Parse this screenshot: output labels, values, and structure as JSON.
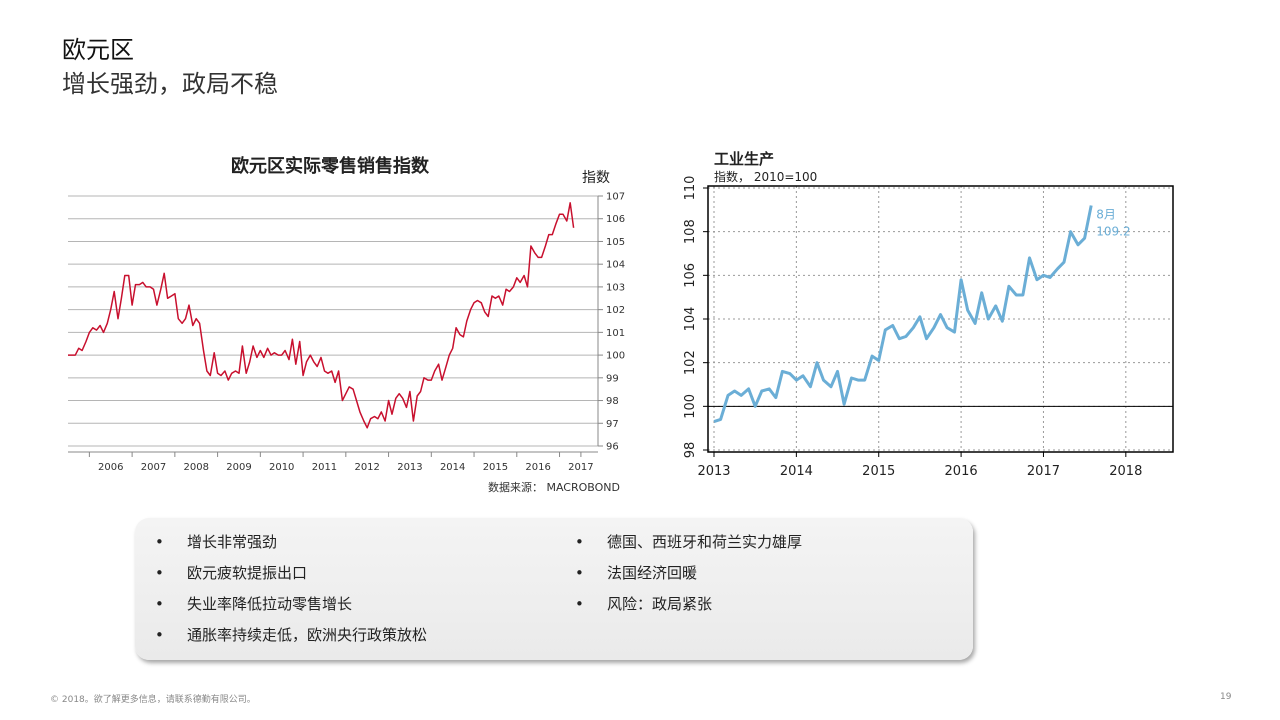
{
  "header": {
    "title": "欧元区",
    "subtitle": "增长强劲，政局不稳"
  },
  "chart_data": [
    {
      "type": "line",
      "title": "欧元区实际零售销售指数",
      "ylabel": "指数",
      "source": "数据来源： MACROBOND",
      "color": "#c8102e",
      "ylim": [
        96,
        107
      ],
      "yticks": [
        "96",
        "97",
        "98",
        "99",
        "100",
        "101",
        "102",
        "103",
        "104",
        "105",
        "106",
        "107"
      ],
      "xlim": [
        2005.5,
        2017.9
      ],
      "xticks": [
        "2006",
        "2007",
        "2008",
        "2009",
        "2010",
        "2011",
        "2012",
        "2013",
        "2014",
        "2015",
        "2016",
        "2017"
      ],
      "series": [
        {
          "points": [
            [
              2005.5,
              100
            ],
            [
              2005.67,
              100
            ],
            [
              2005.75,
              100.3
            ],
            [
              2005.83,
              100.2
            ],
            [
              2005.92,
              100.6
            ],
            [
              2006.0,
              101.0
            ],
            [
              2006.08,
              101.2
            ],
            [
              2006.17,
              101.1
            ],
            [
              2006.25,
              101.3
            ],
            [
              2006.33,
              101.0
            ],
            [
              2006.42,
              101.4
            ],
            [
              2006.5,
              102.0
            ],
            [
              2006.58,
              102.8
            ],
            [
              2006.67,
              101.6
            ],
            [
              2006.75,
              102.5
            ],
            [
              2006.83,
              103.5
            ],
            [
              2006.92,
              103.5
            ],
            [
              2007.0,
              102.2
            ],
            [
              2007.08,
              103.1
            ],
            [
              2007.17,
              103.1
            ],
            [
              2007.25,
              103.2
            ],
            [
              2007.33,
              103.0
            ],
            [
              2007.42,
              103.0
            ],
            [
              2007.5,
              102.9
            ],
            [
              2007.58,
              102.2
            ],
            [
              2007.67,
              102.9
            ],
            [
              2007.75,
              103.6
            ],
            [
              2007.83,
              102.5
            ],
            [
              2007.92,
              102.6
            ],
            [
              2008.0,
              102.7
            ],
            [
              2008.08,
              101.6
            ],
            [
              2008.17,
              101.4
            ],
            [
              2008.25,
              101.6
            ],
            [
              2008.33,
              102.2
            ],
            [
              2008.42,
              101.3
            ],
            [
              2008.5,
              101.6
            ],
            [
              2008.58,
              101.4
            ],
            [
              2008.67,
              100.2
            ],
            [
              2008.75,
              99.3
            ],
            [
              2008.83,
              99.1
            ],
            [
              2008.92,
              100.1
            ],
            [
              2009.0,
              99.2
            ],
            [
              2009.08,
              99.1
            ],
            [
              2009.17,
              99.3
            ],
            [
              2009.25,
              98.9
            ],
            [
              2009.33,
              99.2
            ],
            [
              2009.42,
              99.3
            ],
            [
              2009.5,
              99.2
            ],
            [
              2009.58,
              100.4
            ],
            [
              2009.67,
              99.2
            ],
            [
              2009.75,
              99.7
            ],
            [
              2009.83,
              100.4
            ],
            [
              2009.92,
              99.9
            ],
            [
              2010.0,
              100.2
            ],
            [
              2010.08,
              99.9
            ],
            [
              2010.17,
              100.3
            ],
            [
              2010.25,
              100.0
            ],
            [
              2010.33,
              100.1
            ],
            [
              2010.42,
              100.0
            ],
            [
              2010.5,
              100.0
            ],
            [
              2010.58,
              100.2
            ],
            [
              2010.67,
              99.8
            ],
            [
              2010.75,
              100.7
            ],
            [
              2010.83,
              99.6
            ],
            [
              2010.92,
              100.6
            ],
            [
              2011.0,
              99.1
            ],
            [
              2011.08,
              99.7
            ],
            [
              2011.17,
              100.0
            ],
            [
              2011.25,
              99.7
            ],
            [
              2011.33,
              99.5
            ],
            [
              2011.42,
              99.9
            ],
            [
              2011.5,
              99.3
            ],
            [
              2011.58,
              99.2
            ],
            [
              2011.67,
              99.3
            ],
            [
              2011.75,
              98.8
            ],
            [
              2011.83,
              99.3
            ],
            [
              2011.92,
              98.0
            ],
            [
              2012.0,
              98.3
            ],
            [
              2012.08,
              98.6
            ],
            [
              2012.17,
              98.5
            ],
            [
              2012.25,
              98.0
            ],
            [
              2012.33,
              97.5
            ],
            [
              2012.42,
              97.1
            ],
            [
              2012.5,
              96.8
            ],
            [
              2012.58,
              97.2
            ],
            [
              2012.67,
              97.3
            ],
            [
              2012.75,
              97.2
            ],
            [
              2012.83,
              97.5
            ],
            [
              2012.92,
              97.1
            ],
            [
              2013.0,
              98.0
            ],
            [
              2013.08,
              97.4
            ],
            [
              2013.17,
              98.1
            ],
            [
              2013.25,
              98.3
            ],
            [
              2013.33,
              98.1
            ],
            [
              2013.42,
              97.7
            ],
            [
              2013.5,
              98.4
            ],
            [
              2013.58,
              97.1
            ],
            [
              2013.67,
              98.2
            ],
            [
              2013.75,
              98.4
            ],
            [
              2013.83,
              99.0
            ],
            [
              2013.92,
              98.9
            ],
            [
              2014.0,
              98.9
            ],
            [
              2014.08,
              99.3
            ],
            [
              2014.17,
              99.6
            ],
            [
              2014.25,
              98.9
            ],
            [
              2014.33,
              99.4
            ],
            [
              2014.42,
              100.0
            ],
            [
              2014.5,
              100.3
            ],
            [
              2014.58,
              101.2
            ],
            [
              2014.67,
              100.9
            ],
            [
              2014.75,
              100.8
            ],
            [
              2014.83,
              101.5
            ],
            [
              2014.92,
              102.0
            ],
            [
              2015.0,
              102.3
            ],
            [
              2015.08,
              102.4
            ],
            [
              2015.17,
              102.3
            ],
            [
              2015.25,
              101.9
            ],
            [
              2015.33,
              101.7
            ],
            [
              2015.42,
              102.6
            ],
            [
              2015.5,
              102.5
            ],
            [
              2015.58,
              102.6
            ],
            [
              2015.67,
              102.2
            ],
            [
              2015.75,
              102.9
            ],
            [
              2015.83,
              102.8
            ],
            [
              2015.92,
              103.0
            ],
            [
              2016.0,
              103.4
            ],
            [
              2016.08,
              103.2
            ],
            [
              2016.17,
              103.5
            ],
            [
              2016.25,
              103.0
            ],
            [
              2016.33,
              104.8
            ],
            [
              2016.42,
              104.5
            ],
            [
              2016.5,
              104.3
            ],
            [
              2016.58,
              104.3
            ],
            [
              2016.67,
              104.8
            ],
            [
              2016.75,
              105.3
            ],
            [
              2016.83,
              105.3
            ],
            [
              2016.92,
              105.8
            ],
            [
              2017.0,
              106.2
            ],
            [
              2017.08,
              106.2
            ],
            [
              2017.17,
              105.9
            ],
            [
              2017.25,
              106.7
            ],
            [
              2017.33,
              105.6
            ]
          ]
        }
      ]
    },
    {
      "type": "line",
      "title": "工业生产",
      "ylabel": "指数， 2010=100",
      "color": "#6baed6",
      "ylim": [
        98,
        110
      ],
      "yticks": [
        "98",
        "100",
        "102",
        "104",
        "106",
        "108",
        "110"
      ],
      "xlim": [
        2013,
        2018.5
      ],
      "xticks": [
        "2013",
        "2014",
        "2015",
        "2016",
        "2017",
        "2018"
      ],
      "reference_line": 100,
      "annotation": {
        "month": "8月",
        "value": "109.2"
      },
      "series": [
        {
          "points": [
            [
              2013.0,
              99.3
            ],
            [
              2013.08,
              99.4
            ],
            [
              2013.17,
              100.5
            ],
            [
              2013.25,
              100.7
            ],
            [
              2013.33,
              100.5
            ],
            [
              2013.42,
              100.8
            ],
            [
              2013.5,
              100.0
            ],
            [
              2013.58,
              100.7
            ],
            [
              2013.67,
              100.8
            ],
            [
              2013.75,
              100.4
            ],
            [
              2013.83,
              101.6
            ],
            [
              2013.92,
              101.5
            ],
            [
              2014.0,
              101.2
            ],
            [
              2014.08,
              101.4
            ],
            [
              2014.17,
              100.9
            ],
            [
              2014.25,
              102.0
            ],
            [
              2014.33,
              101.2
            ],
            [
              2014.42,
              100.9
            ],
            [
              2014.5,
              101.6
            ],
            [
              2014.58,
              100.1
            ],
            [
              2014.67,
              101.3
            ],
            [
              2014.75,
              101.2
            ],
            [
              2014.83,
              101.2
            ],
            [
              2014.92,
              102.3
            ],
            [
              2015.0,
              102.1
            ],
            [
              2015.08,
              103.5
            ],
            [
              2015.17,
              103.7
            ],
            [
              2015.25,
              103.1
            ],
            [
              2015.33,
              103.2
            ],
            [
              2015.42,
              103.6
            ],
            [
              2015.5,
              104.1
            ],
            [
              2015.58,
              103.1
            ],
            [
              2015.67,
              103.6
            ],
            [
              2015.75,
              104.2
            ],
            [
              2015.83,
              103.6
            ],
            [
              2015.92,
              103.4
            ],
            [
              2016.0,
              105.8
            ],
            [
              2016.08,
              104.4
            ],
            [
              2016.17,
              103.8
            ],
            [
              2016.25,
              105.2
            ],
            [
              2016.33,
              104.0
            ],
            [
              2016.42,
              104.6
            ],
            [
              2016.5,
              103.9
            ],
            [
              2016.58,
              105.5
            ],
            [
              2016.67,
              105.1
            ],
            [
              2016.75,
              105.1
            ],
            [
              2016.83,
              106.8
            ],
            [
              2016.92,
              105.8
            ],
            [
              2017.0,
              106.0
            ],
            [
              2017.08,
              105.9
            ],
            [
              2017.17,
              106.3
            ],
            [
              2017.25,
              106.6
            ],
            [
              2017.33,
              108.0
            ],
            [
              2017.42,
              107.4
            ],
            [
              2017.5,
              107.7
            ],
            [
              2017.58,
              109.2
            ]
          ]
        }
      ]
    }
  ],
  "bullets": {
    "left": [
      "增长非常强劲",
      "欧元疲软提振出口",
      "失业率降低拉动零售增长",
      "通胀率持续走低，欧洲央行政策放松"
    ],
    "right": [
      "德国、西班牙和荷兰实力雄厚",
      "法国经济回暖",
      "风险：政局紧张"
    ],
    "marker": "•"
  },
  "footer": {
    "copyright": "© 2018。欲了解更多信息，请联系德勤有限公司。",
    "page": "19"
  }
}
